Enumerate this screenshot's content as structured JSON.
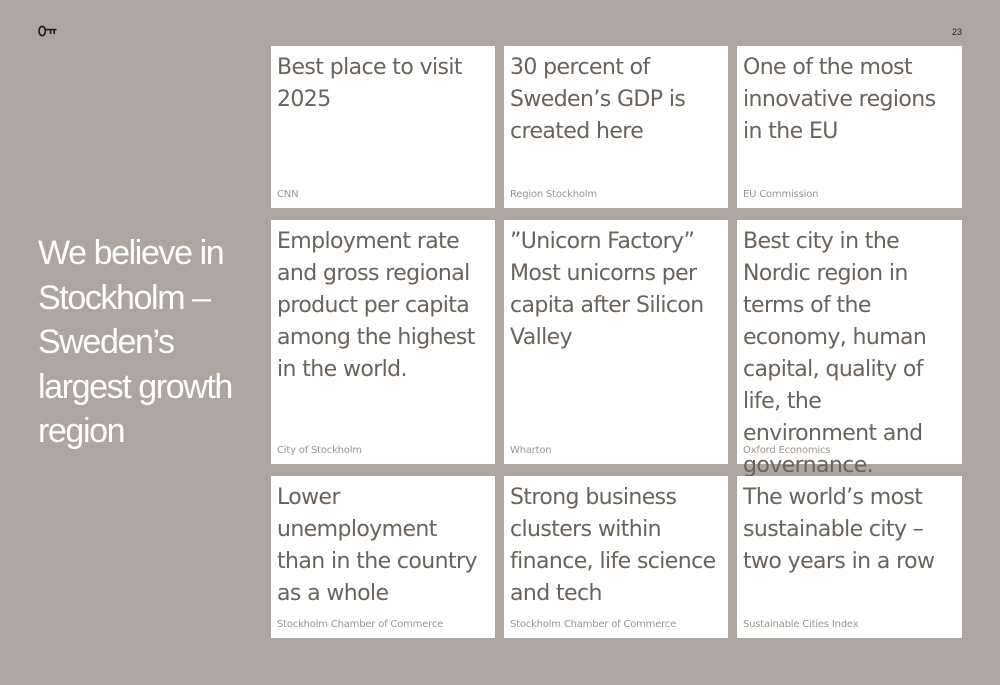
{
  "page_number": "23",
  "headline": "We believe in Stockholm – Sweden’s largest growth region",
  "cards": [
    {
      "text": "Best place to visit 2025",
      "source": "CNN"
    },
    {
      "text": "30 percent of Sweden’s GDP is created here",
      "source": "Region Stockholm"
    },
    {
      "text": "One of the most innovative regions in the EU",
      "source": "EU Commission"
    },
    {
      "text": "Employment rate and gross regional product per capita among the highest in the world.",
      "source": "City of Stockholm"
    },
    {
      "text": "”Unicorn Factory” Most unicorns per capita after Silicon Valley",
      "source": "Wharton"
    },
    {
      "text": "Best city in the Nordic region in terms of the economy, human capital, quality of life, the environment and governance.",
      "source": "Oxford Economics"
    },
    {
      "text": "Lower unemployment than in the country as a whole",
      "source": "Stockholm Chamber of Commerce"
    },
    {
      "text": "Strong business clusters within finance, life science and tech",
      "source": "Stockholm Chamber of Commerce"
    },
    {
      "text": "The world’s most sustainable city – two years in a row",
      "source": "Sustainable Cities Index"
    }
  ]
}
